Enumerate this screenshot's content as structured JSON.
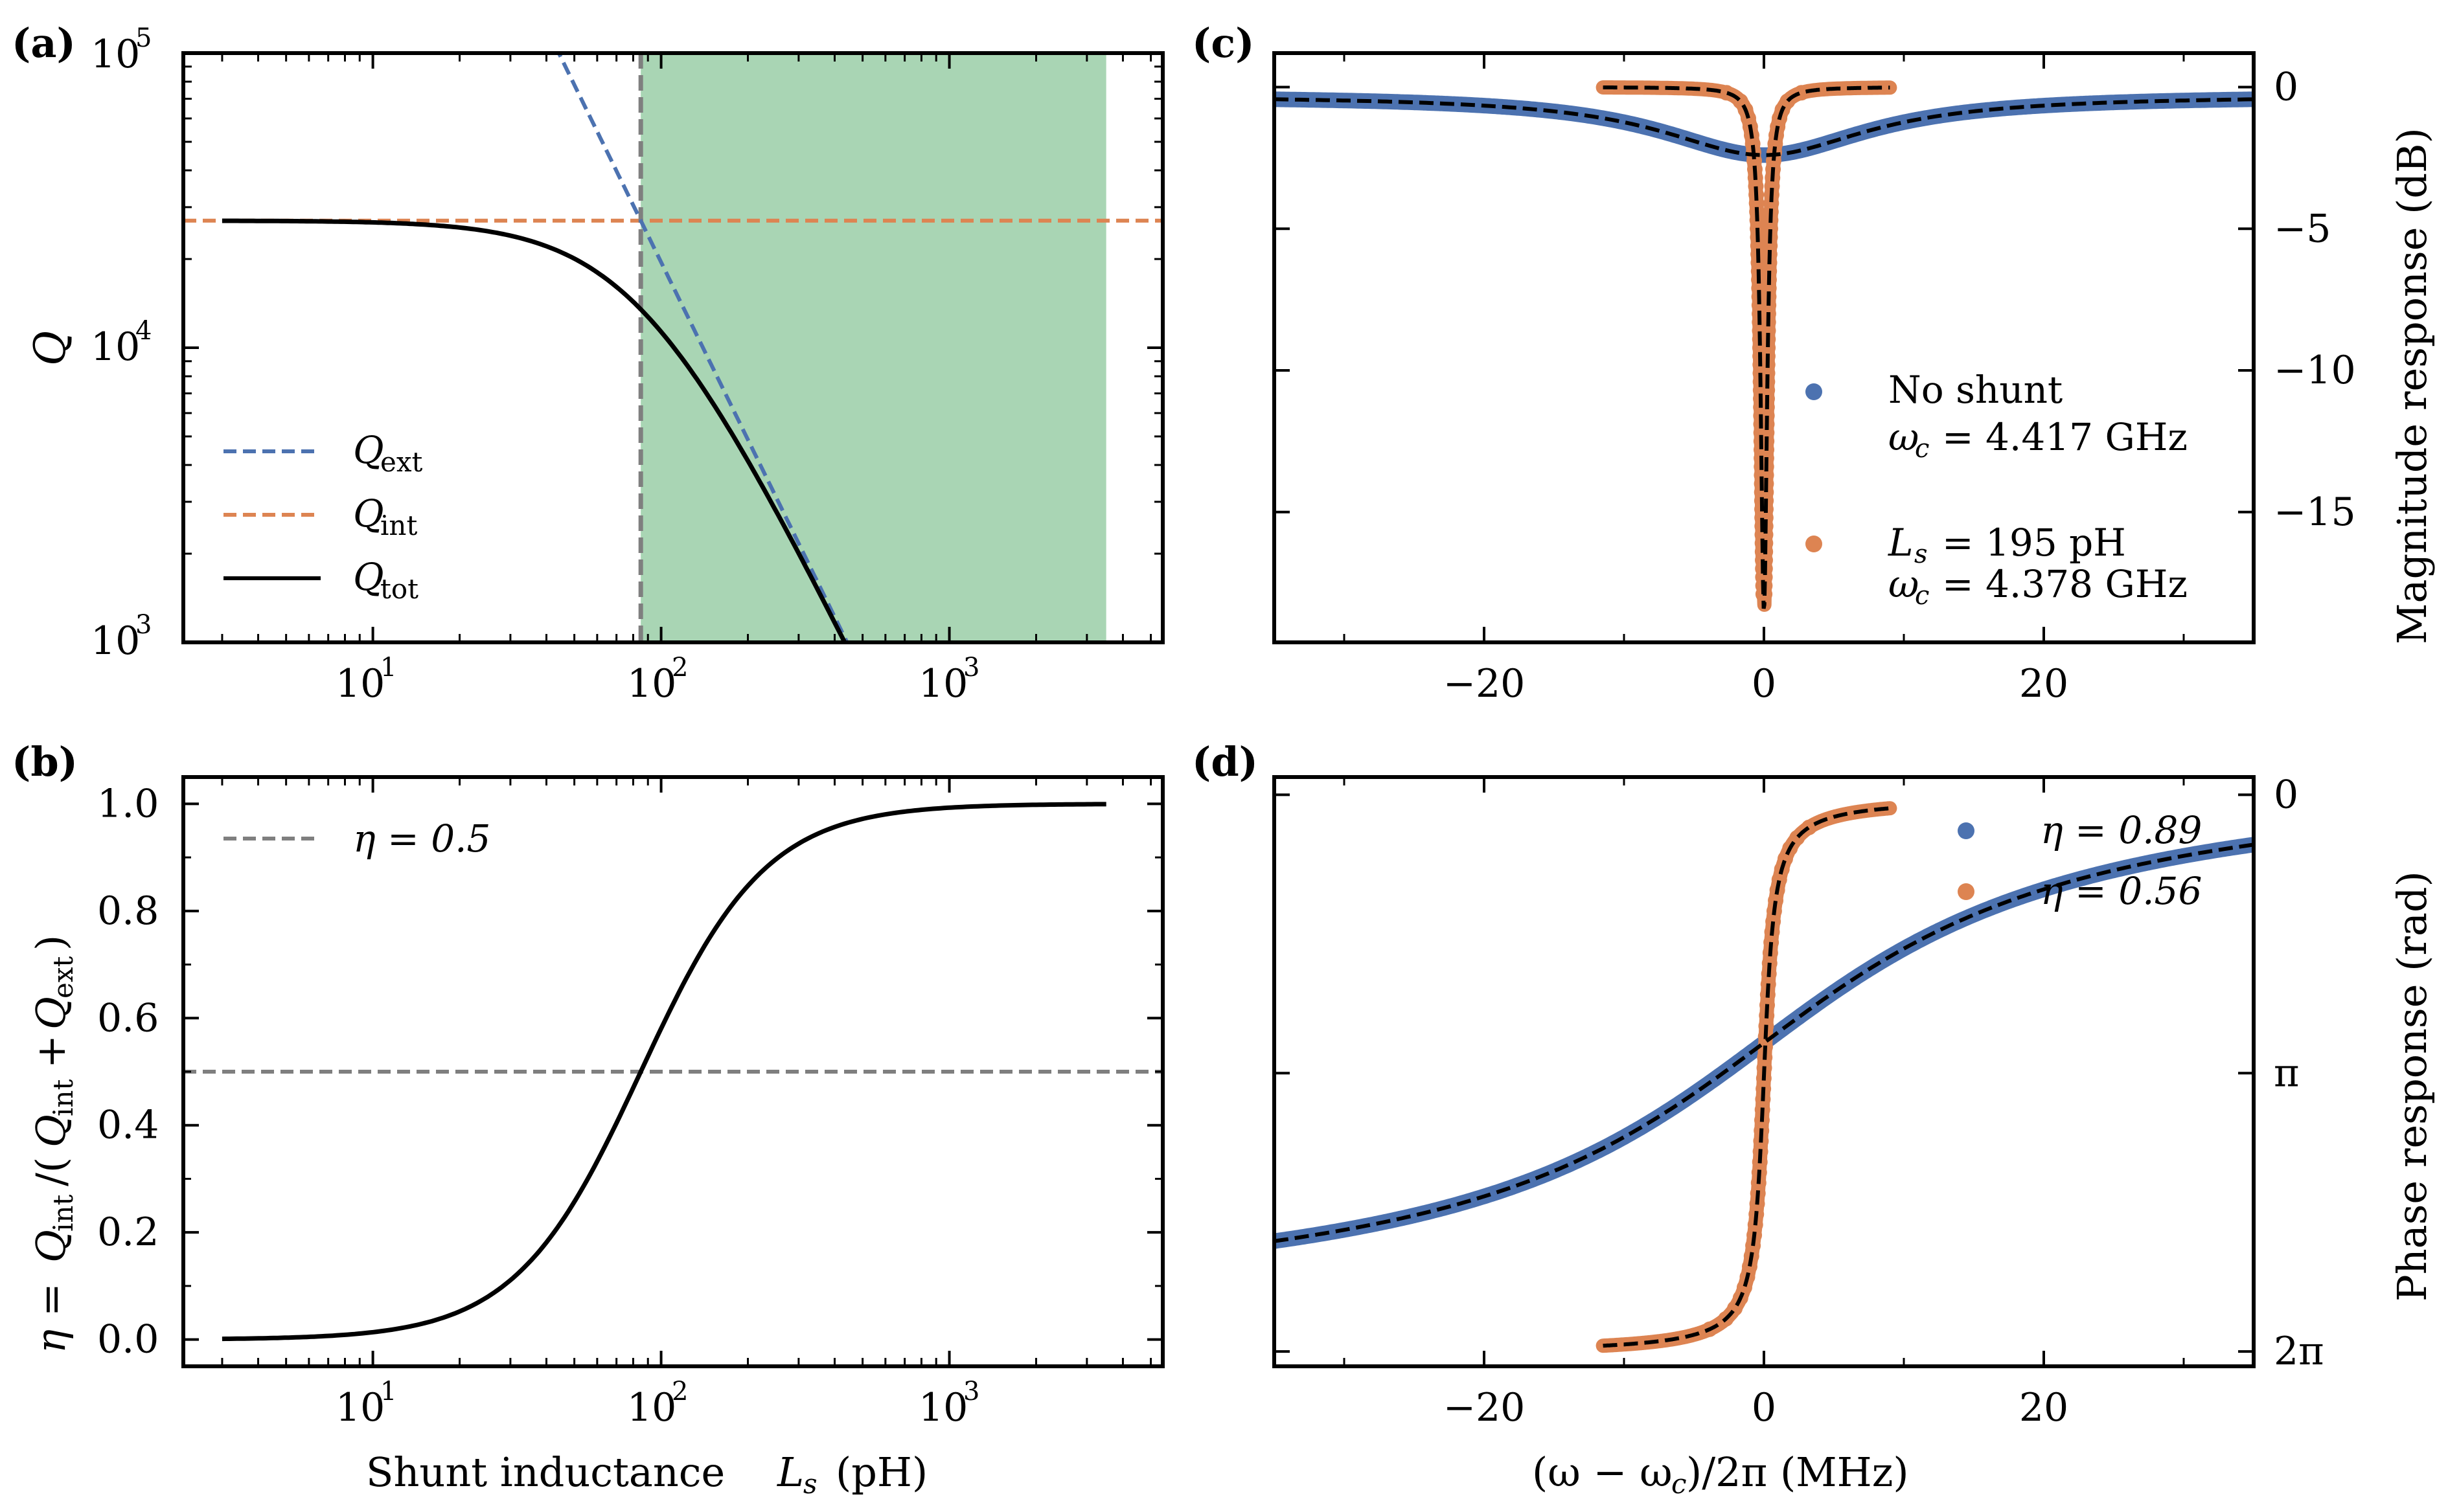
{
  "figure": {
    "colors": {
      "blue": "#4c72b0",
      "orange": "#dd8452",
      "black": "#000000",
      "gray": "#7f7f7f",
      "green": "#a9d5b4",
      "dashed_fit": "#000000"
    }
  },
  "chart_data": [
    {
      "panel": "(a)",
      "type": "line",
      "xscale": "log",
      "yscale": "log",
      "xlim": [
        2.2,
        5500
      ],
      "ylim": [
        1000,
        100000
      ],
      "ylabel": "Q",
      "xlabel": "",
      "x_tick_labels": [
        {
          "v": 10,
          "label": "10^1"
        },
        {
          "v": 100,
          "label": "10^2"
        },
        {
          "v": 1000,
          "label": "10^3"
        }
      ],
      "y_tick_labels": [
        {
          "v": 1000,
          "label": "10^3"
        },
        {
          "v": 10000,
          "label": "10^4"
        },
        {
          "v": 100000,
          "label": "10^5"
        }
      ],
      "shaded_region": {
        "x": [
          85,
          3500
        ],
        "color": "#a9d5b4"
      },
      "vline": {
        "x": 85,
        "color": "#7f7f7f",
        "style": "dashed"
      },
      "series": [
        {
          "name": "Q_ext",
          "color": "#4c72b0",
          "style": "dashed",
          "model": "Qext = 27000*(85/L)^2",
          "x_range": [
            44,
            430
          ]
        },
        {
          "name": "Q_int",
          "color": "#dd8452",
          "style": "dashed",
          "model": "Qint = 27000",
          "x_range": [
            2.2,
            5500
          ]
        },
        {
          "name": "Q_tot",
          "color": "#000000",
          "style": "solid",
          "model": "1/(1/Qint+1/Qext)",
          "x_range": [
            3,
            430
          ]
        }
      ],
      "legend": {
        "position": "lower-left",
        "entries": [
          {
            "sym": "Q",
            "sub": "ext"
          },
          {
            "sym": "Q",
            "sub": "int"
          },
          {
            "sym": "Q",
            "sub": "tot"
          }
        ]
      }
    },
    {
      "panel": "(b)",
      "type": "line",
      "xscale": "log",
      "xlim": [
        2.2,
        5500
      ],
      "ylim": [
        -0.05,
        1.05
      ],
      "xlabel": "Shunt inductance L_s (pH)",
      "ylabel": "η = Q_int/(Q_int + Q_ext)",
      "x_tick_labels": [
        {
          "v": 10,
          "label": "10^1"
        },
        {
          "v": 100,
          "label": "10^2"
        },
        {
          "v": 1000,
          "label": "10^3"
        }
      ],
      "y_tick_labels": [
        "0.0",
        "0.2",
        "0.4",
        "0.6",
        "0.8",
        "1.0"
      ],
      "hline": {
        "y": 0.5,
        "color": "#7f7f7f",
        "style": "dashed"
      },
      "series": [
        {
          "name": "eta",
          "color": "#000000",
          "model": "1/(1+(85/L)^2)",
          "x_range": [
            3,
            3500
          ]
        }
      ],
      "legend": {
        "position": "top-left",
        "entries": [
          {
            "label": "η = 0.5"
          }
        ]
      }
    },
    {
      "panel": "(c)",
      "type": "scatter",
      "xlim": [
        -35,
        35
      ],
      "ylim": [
        -19.6,
        1.2
      ],
      "xlabel": "",
      "ylabel": "Magnitude response (dB)",
      "x_ticks": [
        -20,
        0,
        20
      ],
      "y_ticks": [
        0,
        -5,
        -10,
        -15
      ],
      "y_tick_labels": [
        "0",
        "−5",
        "−10",
        "−15"
      ],
      "series": [
        {
          "name": "No shunt",
          "color": "#4c72b0",
          "x_range": [
            -35,
            35
          ],
          "dip_db": -2.1,
          "width_mhz": 18
        },
        {
          "name": "L_s = 195 pH",
          "color": "#dd8452",
          "x_range": [
            -11.5,
            9
          ],
          "dip_db": -18.5,
          "width_mhz": 0.6
        }
      ],
      "legend": {
        "position": "center-right",
        "entries": [
          {
            "line1": "No shunt",
            "line2": "ω_c = 4.417 GHz"
          },
          {
            "line1": "L_s = 195 pH",
            "line2": "ω_c = 4.378 GHz"
          }
        ]
      }
    },
    {
      "panel": "(d)",
      "type": "scatter",
      "xlim": [
        -35,
        35
      ],
      "ylim": [
        6.45,
        -0.2
      ],
      "xlabel": "(ω − ω_c)/2π (MHz)",
      "ylabel": "Phase response (rad)",
      "x_ticks": [
        -20,
        0,
        20
      ],
      "y_tick_labels": [
        "0",
        "π",
        "2π"
      ],
      "series": [
        {
          "name": "η = 0.89",
          "color": "#4c72b0",
          "x_range": [
            -35,
            35
          ]
        },
        {
          "name": "η = 0.56",
          "color": "#dd8452",
          "x_range": [
            -11.5,
            9
          ]
        }
      ],
      "legend": {
        "position": "top-right",
        "entries": [
          "η = 0.89",
          "η = 0.56"
        ]
      }
    }
  ],
  "labels": {
    "a": "(a)",
    "b": "(b)",
    "c": "(c)",
    "d": "(d)",
    "xlabel_b": "Shunt inductance",
    "xlabel_b_unit": "(pH)",
    "eta_legend": "η = 0.5",
    "c_leg1a": "No shunt",
    "c_leg1b": "ω",
    "c_leg1c": "= 4.417 GHz",
    "c_leg2a": "L",
    "c_leg2b": "= 195 pH",
    "c_leg2c": "ω",
    "c_leg2d": "= 4.378 GHz",
    "d_leg1": "η = 0.89",
    "d_leg2": "η = 0.56",
    "ylabel_c": "Magnitude response (dB)",
    "ylabel_d": "Phase response (rad)",
    "xlabel_d": "(ω − ω",
    "xlabel_d2": ")/2π (MHz)",
    "ylabel_b": "η = Q",
    "ylabel_b2": "/(Q",
    "ylabel_b3": " + Q",
    "ylabel_b4": ")",
    "sub_int": "int",
    "sub_ext": "ext",
    "sub_tot": "tot",
    "sub_c": "c",
    "sub_s": "s",
    "sym_Q": "Q",
    "sym_L": "L"
  }
}
